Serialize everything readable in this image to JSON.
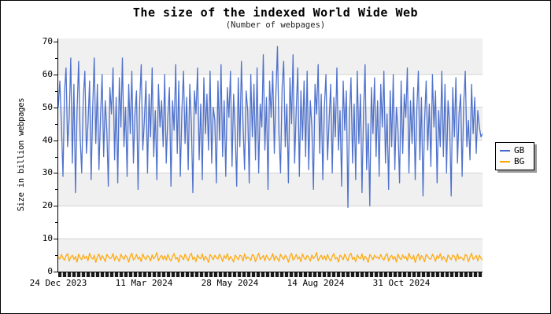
{
  "chart_data": {
    "type": "line",
    "title": "The size of the indexed World Wide Web",
    "subtitle": "(Number of webpages)",
    "ylabel": "Size in billion webpages",
    "xlabel": "",
    "ylim": [
      0,
      70
    ],
    "y_ticks": [
      0,
      10,
      20,
      30,
      40,
      50,
      60,
      70
    ],
    "y_minor_ticks": [
      5,
      15,
      25,
      35,
      45,
      55,
      65
    ],
    "x_tick_labels": [
      "24 Dec 2023",
      "11 Mar 2024",
      "28 May 2024",
      "14 Aug 2024",
      "31 Oct 2024"
    ],
    "grid": "horizontal-bands-alternating",
    "legend_position": "right",
    "colors": {
      "band_gray": "#f0f0f0",
      "band_white": "#ffffff",
      "gridline": "#d4d4d4",
      "axis": "#000000",
      "legend_bg": "#fbfbfb",
      "legend_shadow": "#9a9a9a"
    },
    "series": [
      {
        "name": "GB",
        "color": "#4066c8",
        "values": [
          50,
          58,
          45,
          29,
          55,
          62,
          38,
          47,
          65,
          33,
          57,
          24,
          49,
          64,
          41,
          30,
          53,
          61,
          36,
          45,
          58,
          28,
          50,
          65,
          39,
          57,
          31,
          47,
          60,
          35,
          52,
          43,
          26,
          56,
          48,
          62,
          34,
          53,
          27,
          59,
          44,
          65,
          38,
          50,
          29,
          57,
          42,
          61,
          33,
          48,
          55,
          25,
          51,
          63,
          37,
          46,
          58,
          30,
          54,
          41,
          62,
          35,
          49,
          28,
          57,
          44,
          52,
          38,
          60,
          33,
          47,
          56,
          26,
          52,
          43,
          63,
          36,
          58,
          29,
          49,
          61,
          39,
          53,
          31,
          57,
          45,
          24,
          55,
          48,
          62,
          34,
          51,
          28,
          59,
          42,
          54,
          37,
          61,
          33,
          50,
          46,
          27,
          58,
          40,
          63,
          35,
          52,
          29,
          56,
          47,
          61,
          32,
          54,
          43,
          26,
          59,
          38,
          64,
          45,
          31,
          55,
          49,
          27,
          60,
          41,
          57,
          34,
          62,
          30,
          51,
          44,
          66,
          37,
          53,
          25,
          58,
          47,
          61,
          36,
          54,
          68.5,
          42,
          30,
          56,
          64,
          38,
          51,
          27,
          59,
          45,
          66,
          33,
          49,
          62,
          29,
          55,
          40,
          58,
          35,
          61,
          31,
          52,
          44,
          25,
          57,
          48,
          63,
          36,
          54,
          28,
          50,
          60,
          34,
          46,
          57,
          30,
          53,
          41,
          62,
          37,
          49,
          26,
          58,
          43,
          55,
          19.5,
          47,
          59,
          33,
          51,
          28,
          61,
          39,
          54,
          24,
          48,
          63,
          31,
          45,
          20,
          56,
          42,
          59,
          35,
          52,
          29,
          57,
          44,
          61,
          33,
          48,
          25,
          55,
          38,
          60,
          31,
          50,
          43,
          27,
          58,
          36,
          54,
          47,
          62,
          30,
          52,
          39,
          56,
          28,
          49,
          61,
          34,
          53,
          23,
          46,
          58,
          37,
          51,
          32,
          60,
          44,
          55,
          27,
          49,
          38,
          61,
          35,
          57,
          30,
          52,
          45,
          23,
          56,
          41,
          59,
          33,
          48,
          54,
          29,
          51,
          61,
          38,
          46,
          34,
          57,
          42,
          53,
          36,
          49,
          44,
          41,
          42
        ]
      },
      {
        "name": "BG",
        "color": "#ffa500",
        "values": [
          4.5,
          3.8,
          5.2,
          4.1,
          3.5,
          4.8,
          5.5,
          3.2,
          4.4,
          5.0,
          3.7,
          4.6,
          2.9,
          5.3,
          4.2,
          3.6,
          5.1,
          4.0,
          4.7,
          3.3,
          5.6,
          4.3,
          3.8,
          5.0,
          2.8,
          4.5,
          5.4,
          3.5,
          4.9,
          4.1,
          3.0,
          5.2,
          4.6,
          3.9,
          4.2,
          5.5,
          3.4,
          4.8,
          4.0,
          3.1,
          5.3,
          4.4,
          3.7,
          5.0,
          4.3,
          2.9,
          4.7,
          5.6,
          3.5,
          4.1,
          5.2,
          3.8,
          4.5,
          3.0,
          5.4,
          4.2,
          3.6,
          4.9,
          4.4,
          3.2,
          5.1,
          3.9,
          4.6,
          5.8,
          3.3,
          4.3,
          5.0,
          3.7,
          4.8,
          3.5,
          5.2,
          4.0,
          3.2,
          4.6,
          5.5,
          3.8,
          4.3,
          2.9,
          5.0,
          4.5,
          3.6,
          5.3,
          4.1,
          3.3,
          4.9,
          5.6,
          3.7,
          4.4,
          3.0,
          5.1,
          4.2,
          3.9,
          5.4,
          3.4,
          4.7,
          4.0,
          2.8,
          5.2,
          4.5,
          3.6,
          5.0,
          4.2,
          3.8,
          5.3,
          4.4,
          3.1,
          4.9,
          4.0,
          5.5,
          3.5,
          4.6,
          3.9,
          2.9,
          5.1,
          4.3,
          3.6,
          5.0,
          4.7,
          3.2,
          5.4,
          3.8,
          4.5,
          4.1,
          3.4,
          5.2,
          4.8,
          3.0,
          4.4,
          5.6,
          3.7,
          4.2,
          4.9,
          3.3,
          5.0,
          4.1,
          3.5,
          4.2,
          5.5,
          3.4,
          4.8,
          4.0,
          3.1,
          5.3,
          4.4,
          3.7,
          5.0,
          4.3,
          2.9,
          4.7,
          5.6,
          3.5,
          4.1,
          5.2,
          3.8,
          4.5,
          3.0,
          5.4,
          4.2,
          3.6,
          4.9,
          4.4,
          3.2,
          5.1,
          3.9,
          4.6,
          5.8,
          3.3,
          4.3,
          5.0,
          3.7,
          4.8,
          3.5,
          5.2,
          4.0,
          3.2,
          4.6,
          5.5,
          3.8,
          4.3,
          2.9,
          5.0,
          4.5,
          3.6,
          5.3,
          4.1,
          3.3,
          4.9,
          5.6,
          3.7,
          4.4,
          3.0,
          5.1,
          4.2,
          3.9,
          5.4,
          3.4,
          4.7,
          4.0,
          2.8,
          5.2,
          4.5,
          3.6,
          5.0,
          4.2,
          4.5,
          3.8,
          5.2,
          4.1,
          3.5,
          4.8,
          5.5,
          3.2,
          4.4,
          5.0,
          3.7,
          4.6,
          2.9,
          5.3,
          4.2,
          3.6,
          5.1,
          4.0,
          4.7,
          3.3,
          5.6,
          4.3,
          3.8,
          5.0,
          2.8,
          4.5,
          5.4,
          3.5,
          4.9,
          4.1,
          3.0,
          5.2,
          4.6,
          3.9,
          3.8,
          5.3,
          4.4,
          3.1,
          4.9,
          4.0,
          5.5,
          3.5,
          4.6,
          3.9,
          2.9,
          5.1,
          4.3,
          3.6,
          5.0,
          4.7,
          3.2,
          5.4,
          3.8,
          4.5,
          4.1,
          3.4,
          5.2,
          4.8,
          3.0,
          4.4,
          5.6,
          3.7,
          4.2,
          4.9,
          3.3,
          5.0,
          4.1,
          3.5
        ]
      }
    ]
  }
}
